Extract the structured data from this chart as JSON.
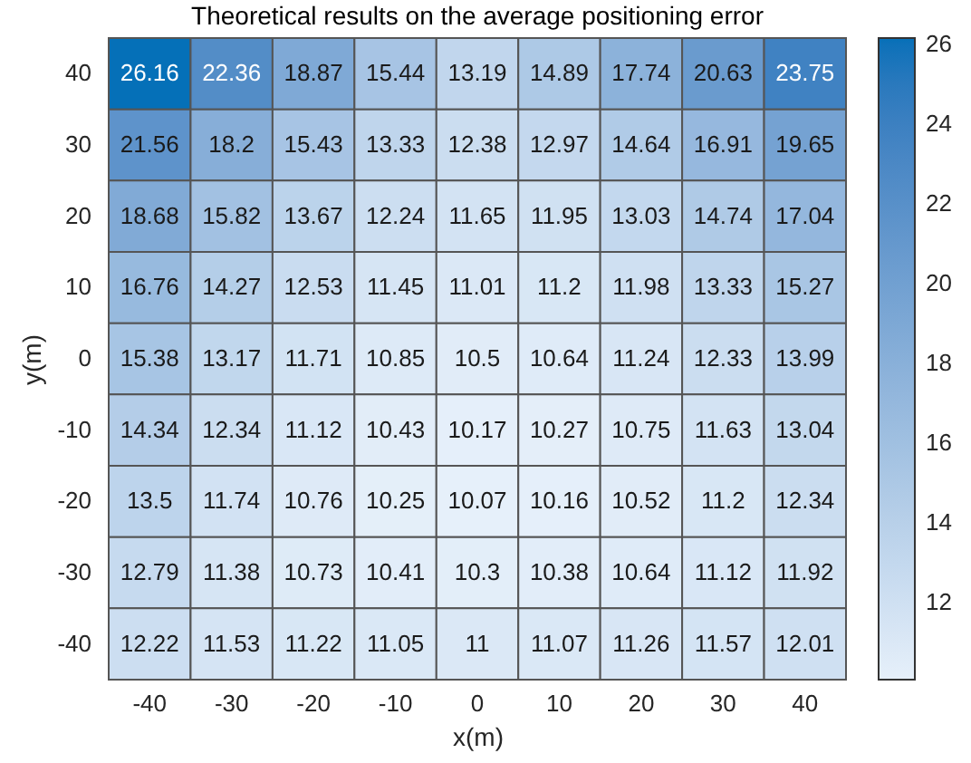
{
  "chart_data": {
    "type": "heatmap",
    "title": "Theoretical results on the average positioning error",
    "xlabel": "x(m)",
    "ylabel": "y(m)",
    "categories": [
      "-40",
      "-30",
      "-20",
      "-10",
      "0",
      "10",
      "20",
      "30",
      "40"
    ],
    "y_categories": [
      "40",
      "30",
      "20",
      "10",
      "0",
      "-10",
      "-20",
      "-30",
      "-40"
    ],
    "cells": [
      [
        26.16,
        22.36,
        18.87,
        15.44,
        13.19,
        14.89,
        17.74,
        20.63,
        23.75
      ],
      [
        21.56,
        18.2,
        15.43,
        13.33,
        12.38,
        12.97,
        14.64,
        16.91,
        19.65
      ],
      [
        18.68,
        15.82,
        13.67,
        12.24,
        11.65,
        11.95,
        13.03,
        14.74,
        17.04
      ],
      [
        16.76,
        14.27,
        12.53,
        11.45,
        11.01,
        11.2,
        11.98,
        13.33,
        15.27
      ],
      [
        15.38,
        13.17,
        11.71,
        10.85,
        10.5,
        10.64,
        11.24,
        12.33,
        13.99
      ],
      [
        14.34,
        12.34,
        11.12,
        10.43,
        10.17,
        10.27,
        10.75,
        11.63,
        13.04
      ],
      [
        13.5,
        11.74,
        10.76,
        10.25,
        10.07,
        10.16,
        10.52,
        11.2,
        12.34
      ],
      [
        12.79,
        11.38,
        10.73,
        10.41,
        10.3,
        10.38,
        10.64,
        11.12,
        11.92
      ],
      [
        12.22,
        11.53,
        11.22,
        11.05,
        11,
        11.07,
        11.26,
        11.57,
        12.01
      ]
    ],
    "clim": [
      10.07,
      26.16
    ],
    "cticks": [
      12,
      14,
      16,
      18,
      20,
      22,
      24,
      26
    ],
    "data_labels": true
  }
}
